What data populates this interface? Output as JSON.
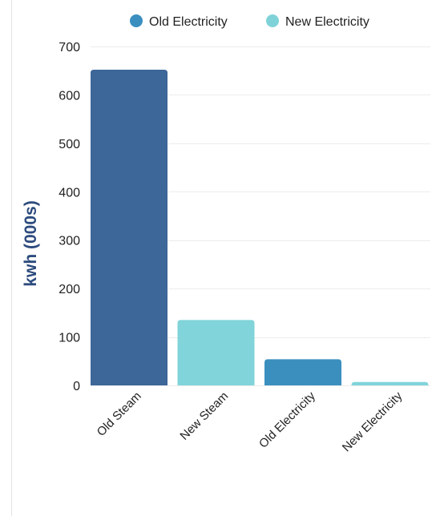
{
  "chart_data": {
    "type": "bar",
    "categories": [
      "Old Steam",
      "New Steam",
      "Old Electricity",
      "New Electricity"
    ],
    "values": [
      652,
      135,
      54,
      7
    ],
    "ylabel": "kwh (000s)",
    "xlabel": "",
    "ylim": [
      0,
      700
    ],
    "yticks": [
      0,
      100,
      200,
      300,
      400,
      500,
      600,
      700
    ],
    "grid": true,
    "legend_position": "top",
    "legend": [
      {
        "label": "Old Electricity",
        "color": "#3a8fbf"
      },
      {
        "label": "New Electricity",
        "color": "#7fd3d8"
      }
    ],
    "bar_colors": [
      "#3d6699",
      "#80d4da",
      "#3a8fbf",
      "#80d4da"
    ],
    "ylabel_color": "#2c4b7d",
    "grid_color": "#ececec"
  }
}
